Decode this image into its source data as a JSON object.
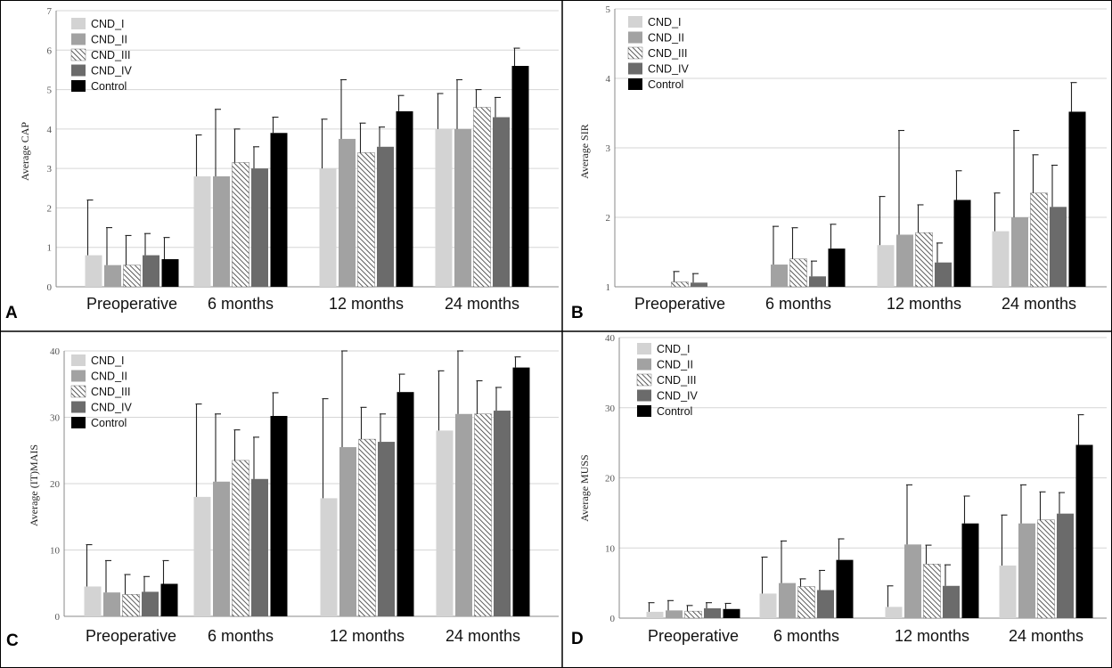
{
  "series_styles": [
    {
      "name": "CND_I",
      "color": "#d3d3d3",
      "pattern": "none"
    },
    {
      "name": "CND_II",
      "color": "#a2a2a2",
      "pattern": "none"
    },
    {
      "name": "CND_III",
      "color": "#ffffff",
      "pattern": "diagonal-hatch"
    },
    {
      "name": "CND_IV",
      "color": "#6b6b6b",
      "pattern": "none"
    },
    {
      "name": "Control",
      "color": "#000000",
      "pattern": "none"
    }
  ],
  "chart_data": [
    {
      "panel_label": "A",
      "type": "bar",
      "title": "",
      "xlabel": "",
      "ylabel": "Average CAP",
      "ylim": [
        0,
        7
      ],
      "yticks": [
        "0",
        "1",
        "2",
        "3",
        "4",
        "5",
        "6",
        "7"
      ],
      "grid": true,
      "legend_position": "top-left",
      "categories": [
        "Preoperative",
        "6 months",
        "12 months",
        "24 months"
      ],
      "series": [
        {
          "name": "CND_I",
          "values": [
            0.8,
            2.8,
            3.0,
            4.0
          ],
          "errors": [
            1.4,
            1.05,
            1.25,
            0.9
          ]
        },
        {
          "name": "CND_II",
          "values": [
            0.55,
            2.8,
            3.75,
            4.0
          ],
          "errors": [
            0.95,
            1.7,
            1.5,
            1.25
          ]
        },
        {
          "name": "CND_III",
          "values": [
            0.55,
            3.15,
            3.4,
            4.55
          ],
          "errors": [
            0.75,
            0.85,
            0.75,
            0.45
          ]
        },
        {
          "name": "CND_IV",
          "values": [
            0.8,
            3.0,
            3.55,
            4.3
          ],
          "errors": [
            0.55,
            0.55,
            0.5,
            0.5
          ]
        },
        {
          "name": "Control",
          "values": [
            0.7,
            3.9,
            4.45,
            5.6
          ],
          "errors": [
            0.55,
            0.4,
            0.4,
            0.45
          ]
        }
      ]
    },
    {
      "panel_label": "B",
      "type": "bar",
      "title": "",
      "xlabel": "",
      "ylabel": "Average SIR",
      "ylim": [
        1,
        5
      ],
      "yticks": [
        "1",
        "2",
        "3",
        "4",
        "5"
      ],
      "grid": true,
      "legend_position": "top-left",
      "categories": [
        "Preoperative",
        "6 months",
        "12 months",
        "24 months"
      ],
      "series": [
        {
          "name": "CND_I",
          "values": [
            1.0,
            1.0,
            1.6,
            1.8
          ],
          "errors": [
            0.0,
            0.0,
            0.7,
            0.55
          ]
        },
        {
          "name": "CND_II",
          "values": [
            1.0,
            1.32,
            1.75,
            2.0
          ],
          "errors": [
            0.0,
            0.55,
            1.5,
            1.25
          ]
        },
        {
          "name": "CND_III",
          "values": [
            1.07,
            1.4,
            1.78,
            2.35
          ],
          "errors": [
            0.15,
            0.45,
            0.4,
            0.55
          ]
        },
        {
          "name": "CND_IV",
          "values": [
            1.06,
            1.15,
            1.35,
            2.15
          ],
          "errors": [
            0.13,
            0.22,
            0.28,
            0.6
          ]
        },
        {
          "name": "Control",
          "values": [
            1.0,
            1.55,
            2.25,
            3.52
          ],
          "errors": [
            0.0,
            0.35,
            0.42,
            0.42
          ]
        }
      ]
    },
    {
      "panel_label": "C",
      "type": "bar",
      "title": "",
      "xlabel": "",
      "ylabel": "Average (IT)MAIS",
      "ylim": [
        0,
        40
      ],
      "yticks": [
        "0",
        "10",
        "20",
        "30",
        "40"
      ],
      "grid": true,
      "legend_position": "top-left",
      "categories": [
        "Preoperative",
        "6 months",
        "12 months",
        "24 months"
      ],
      "series": [
        {
          "name": "CND_I",
          "values": [
            4.5,
            18.0,
            17.8,
            28.0
          ],
          "errors": [
            6.3,
            14.0,
            15.0,
            9.0
          ]
        },
        {
          "name": "CND_II",
          "values": [
            3.6,
            20.3,
            25.5,
            30.5
          ],
          "errors": [
            4.8,
            10.2,
            14.5,
            9.5
          ]
        },
        {
          "name": "CND_III",
          "values": [
            3.3,
            23.5,
            26.7,
            30.5
          ],
          "errors": [
            3.0,
            4.6,
            4.8,
            5.0
          ]
        },
        {
          "name": "CND_IV",
          "values": [
            3.7,
            20.7,
            26.3,
            31.0
          ],
          "errors": [
            2.3,
            6.3,
            4.2,
            3.5
          ]
        },
        {
          "name": "Control",
          "values": [
            4.9,
            30.2,
            33.8,
            37.5
          ],
          "errors": [
            3.5,
            3.5,
            2.7,
            1.6
          ]
        }
      ]
    },
    {
      "panel_label": "D",
      "type": "bar",
      "title": "",
      "xlabel": "",
      "ylabel": "Average MUSS",
      "ylim": [
        0,
        40
      ],
      "yticks": [
        "0",
        "10",
        "20",
        "30",
        "40"
      ],
      "grid": true,
      "legend_position": "top-left",
      "categories": [
        "Preoperative",
        "6 months",
        "12 months",
        "24 months"
      ],
      "series": [
        {
          "name": "CND_I",
          "values": [
            0.9,
            3.5,
            1.6,
            7.5
          ],
          "errors": [
            1.3,
            5.2,
            3.0,
            7.2
          ]
        },
        {
          "name": "CND_II",
          "values": [
            1.1,
            5.0,
            10.5,
            13.5
          ],
          "errors": [
            1.4,
            6.0,
            8.5,
            5.5
          ]
        },
        {
          "name": "CND_III",
          "values": [
            1.0,
            4.5,
            7.7,
            14.0
          ],
          "errors": [
            0.8,
            1.1,
            2.7,
            4.0
          ]
        },
        {
          "name": "CND_IV",
          "values": [
            1.4,
            4.0,
            4.6,
            14.9
          ],
          "errors": [
            0.8,
            2.8,
            3.0,
            3.0
          ]
        },
        {
          "name": "Control",
          "values": [
            1.3,
            8.3,
            13.5,
            24.7
          ],
          "errors": [
            0.8,
            3.0,
            3.9,
            4.3
          ]
        }
      ]
    }
  ]
}
